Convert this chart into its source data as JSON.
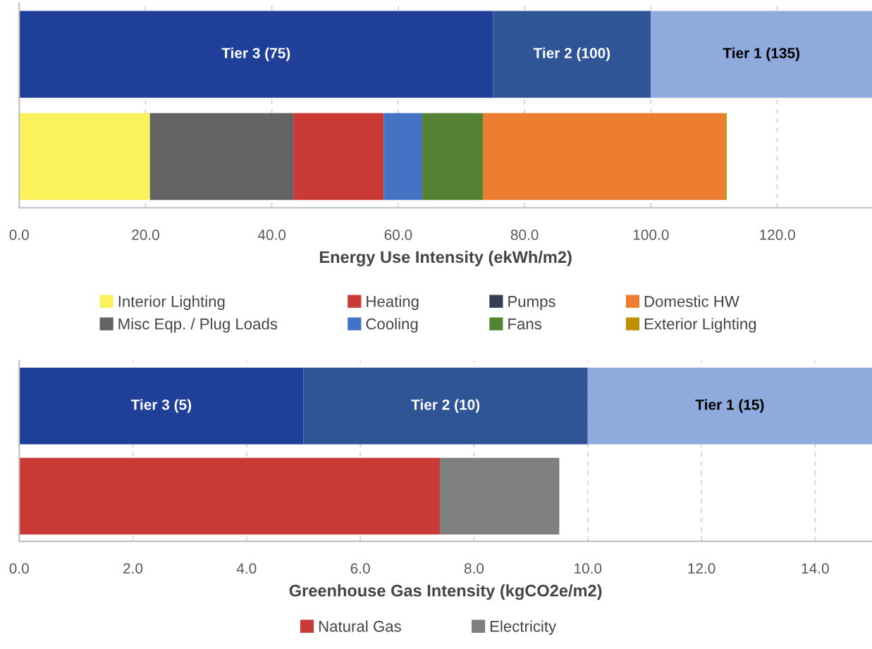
{
  "chart_data": [
    {
      "type": "bar",
      "orientation": "horizontal",
      "stacked": true,
      "categories": [
        null,
        null
      ],
      "xlabel": "Energy Use Intensity (ekWh/m2)",
      "xlim": [
        0,
        135
      ],
      "xticks": [
        {
          "value": 0,
          "label": "0.0"
        },
        {
          "value": 20,
          "label": "20.0"
        },
        {
          "value": 40,
          "label": "40.0"
        },
        {
          "value": 60,
          "label": "60.0"
        },
        {
          "value": 80,
          "label": "80.0"
        },
        {
          "value": 100,
          "label": "100.0"
        },
        {
          "value": 120,
          "label": "120.0"
        }
      ],
      "grid": "x",
      "legend": "bottom",
      "tick_labels": "x",
      "series": [
        {
          "color": "#1f3f99",
          "values": [
            75,
            null
          ],
          "value_labels": [
            "Tier 3 (75)",
            null
          ]
        },
        {
          "color": "#2f5597",
          "values": [
            25,
            null
          ],
          "value_labels": [
            "Tier 2 (100)",
            null
          ]
        },
        {
          "color": "#8faadc",
          "values": [
            35,
            null
          ],
          "value_labels": [
            "Tier 1 (135)",
            null
          ]
        },
        {
          "name": "Interior Lighting",
          "color": "#f9f25a",
          "values": [
            null,
            20.7
          ]
        },
        {
          "name": "Misc Eqp. / Plug Loads",
          "color": "#636366",
          "values": [
            null,
            22.7
          ]
        },
        {
          "name": "Heating",
          "color": "#c93a37",
          "values": [
            null,
            14.3
          ]
        },
        {
          "name": "Cooling",
          "color": "#4472c4",
          "values": [
            null,
            6.1
          ]
        },
        {
          "name": "Pumps",
          "color": "#333f50",
          "values": [
            null,
            0
          ]
        },
        {
          "name": "Fans",
          "color": "#548235",
          "values": [
            null,
            9.6
          ]
        },
        {
          "name": "Domestic HW",
          "color": "#ed7d31",
          "values": [
            null,
            38.3
          ]
        },
        {
          "name": "Exterior Lighting",
          "color": "#bf9000",
          "values": [
            null,
            0.3
          ]
        }
      ]
    },
    {
      "type": "bar",
      "orientation": "horizontal",
      "stacked": true,
      "categories": [
        null,
        null
      ],
      "xlabel": "Greenhouse Gas Intensity (kgCO2e/m2)",
      "xlim": [
        0,
        15
      ],
      "xticks": [
        {
          "value": 0,
          "label": "0.0"
        },
        {
          "value": 2,
          "label": "2.0"
        },
        {
          "value": 4,
          "label": "4.0"
        },
        {
          "value": 6,
          "label": "6.0"
        },
        {
          "value": 8,
          "label": "8.0"
        },
        {
          "value": 10,
          "label": "10.0"
        },
        {
          "value": 12,
          "label": "12.0"
        },
        {
          "value": 14,
          "label": "14.0"
        }
      ],
      "grid": "x",
      "legend": "bottom",
      "tick_labels": "x",
      "series": [
        {
          "color": "#1f3f99",
          "values": [
            5,
            null
          ],
          "value_labels": [
            "Tier 3 (5)",
            null
          ]
        },
        {
          "color": "#2f5597",
          "values": [
            5,
            null
          ],
          "value_labels": [
            "Tier 2 (10)",
            null
          ]
        },
        {
          "color": "#8faadc",
          "values": [
            5,
            null
          ],
          "value_labels": [
            "Tier 1 (15)",
            null
          ]
        },
        {
          "name": "Natural Gas",
          "color": "#c93a37",
          "values": [
            null,
            7.4
          ]
        },
        {
          "name": "Electricity",
          "color": "#7f7f7f",
          "values": [
            null,
            2.1
          ]
        }
      ]
    }
  ]
}
